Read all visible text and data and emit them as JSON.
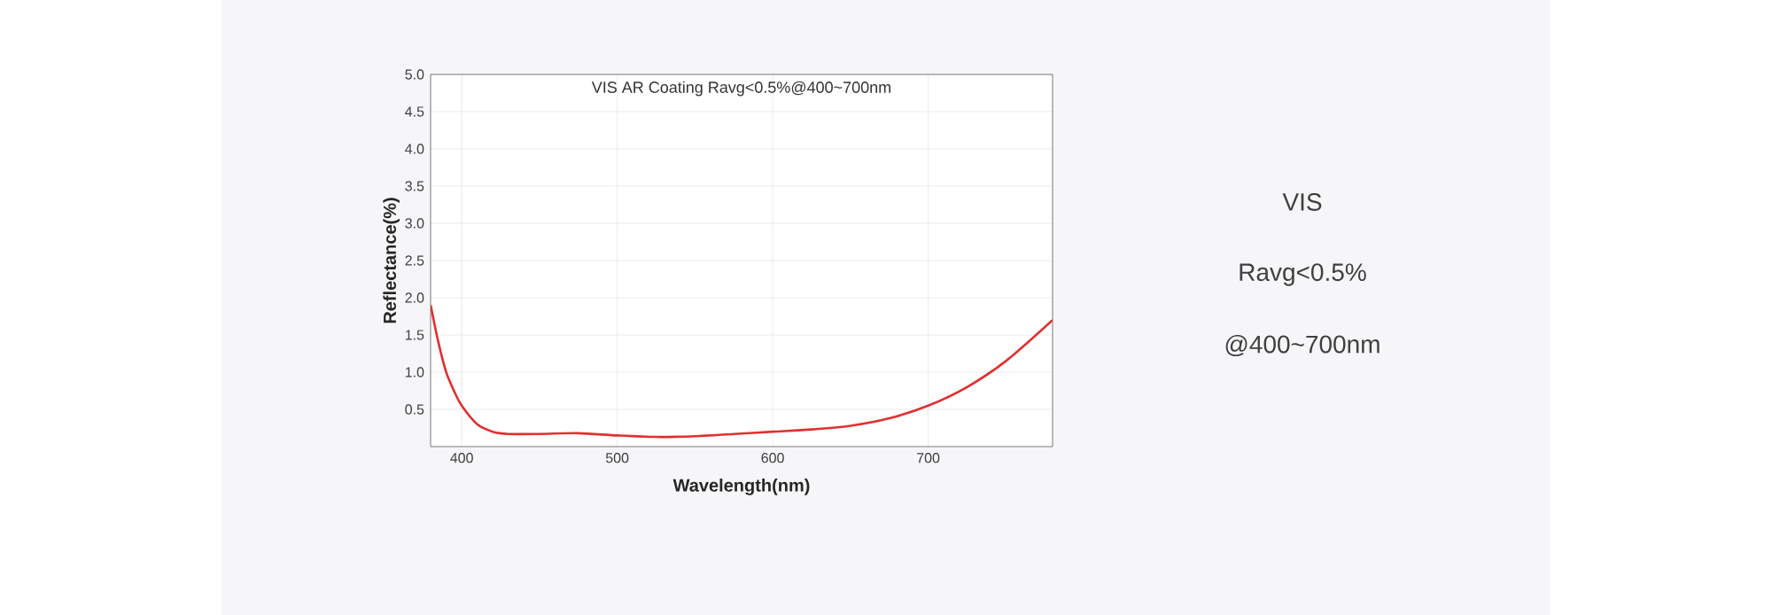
{
  "chart_data": {
    "type": "line",
    "title": "VIS AR Coating Ravg<0.5%@400~700nm",
    "xlabel": "Wavelength(nm)",
    "ylabel": "Reflectance(%)",
    "x": [
      380,
      385,
      390,
      395,
      400,
      410,
      420,
      430,
      450,
      475,
      500,
      525,
      550,
      575,
      600,
      625,
      650,
      675,
      700,
      725,
      750,
      780
    ],
    "series": [
      {
        "color": "#e03030",
        "values": [
          1.9,
          1.4,
          1.0,
          0.75,
          0.55,
          0.3,
          0.2,
          0.17,
          0.17,
          0.18,
          0.15,
          0.13,
          0.14,
          0.17,
          0.2,
          0.23,
          0.28,
          0.38,
          0.55,
          0.8,
          1.15,
          1.7
        ]
      }
    ],
    "xlim": [
      380,
      780
    ],
    "ylim": [
      0,
      5
    ],
    "xticks": [
      400,
      500,
      600,
      700
    ],
    "yticks": [
      {
        "value": 0.5,
        "label": "0.5"
      },
      {
        "value": 1,
        "label": "1.0"
      },
      {
        "value": 1.5,
        "label": "1.5"
      },
      {
        "value": 2,
        "label": "2.0"
      },
      {
        "value": 2.5,
        "label": "2.5"
      },
      {
        "value": 3,
        "label": "3.0"
      },
      {
        "value": 3.5,
        "label": "3.5"
      },
      {
        "value": 4,
        "label": "4.0"
      },
      {
        "value": 4.5,
        "label": "4.5"
      },
      {
        "value": 5,
        "label": "5.0"
      }
    ],
    "grid": true,
    "marker": "none",
    "line_style": "solid",
    "annotations": [
      "VIS",
      "Ravg<0.5%",
      "@400~700nm"
    ]
  }
}
